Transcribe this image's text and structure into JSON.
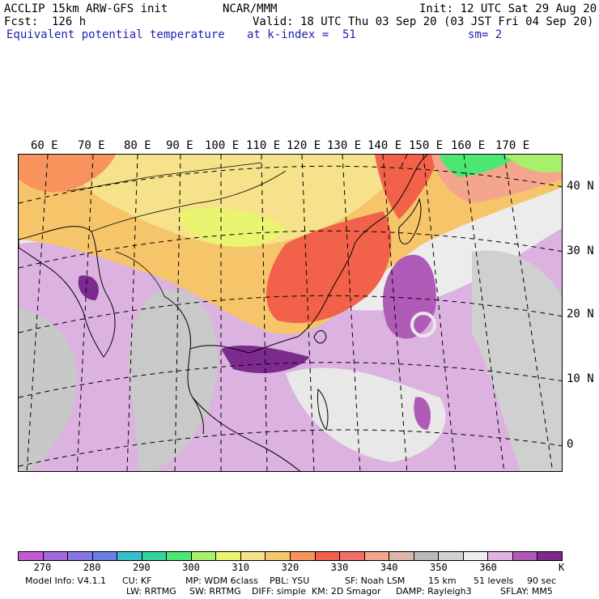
{
  "header": {
    "left_line1": "ACCLIP 15km ARW-GFS init",
    "center_line1": "NCAR/MMM",
    "right_line1": "Init: 12 UTC Sat 29 Aug 20",
    "left_line2": "Fcst:  126 h",
    "right_line2": "Valid: 18 UTC Thu 03 Sep 20 (03 JST Fri 04 Sep 20)",
    "field_name": "Equivalent potential temperature",
    "level": "at k-index =  51",
    "smooth": "sm= 2"
  },
  "map": {
    "lon_labels": [
      "60 E",
      "70 E",
      "80 E",
      "90 E",
      "100 E",
      "110 E",
      "120 E",
      "130 E",
      "140 E",
      "150 E",
      "160 E",
      "170 E"
    ],
    "lat_labels": [
      "40 N",
      "30 N",
      "20 N",
      "10 N",
      "0"
    ]
  },
  "colorbar": {
    "colors": [
      "#c25ad6",
      "#a368dd",
      "#8676e4",
      "#6a7fe6",
      "#35c0c8",
      "#31d49a",
      "#4ce672",
      "#a8f06b",
      "#e9f571",
      "#f6e28a",
      "#f6c56a",
      "#f8935e",
      "#f26149",
      "#f16d68",
      "#f4a68c",
      "#dab7a6",
      "#b9b9b9",
      "#d2d2d2",
      "#eeeeee",
      "#dfb4e2",
      "#b05ab8",
      "#7d2a8f"
    ],
    "ticks": [
      "270",
      "280",
      "290",
      "300",
      "310",
      "320",
      "330",
      "340",
      "350",
      "360"
    ],
    "unit": "K"
  },
  "footer": {
    "line1": [
      "Model Info: V4.1.1",
      "CU: KF",
      "MP: WDM 6class",
      "PBL: YSU",
      "SF: Noah LSM",
      "15 km",
      "51 levels",
      "90 sec"
    ],
    "line2": [
      "LW: RRTMG",
      "SW: RRTMG",
      "DIFF: simple",
      "KM: 2D Smagor",
      "DAMP: Rayleigh3",
      "SFLAY: MM5"
    ]
  }
}
